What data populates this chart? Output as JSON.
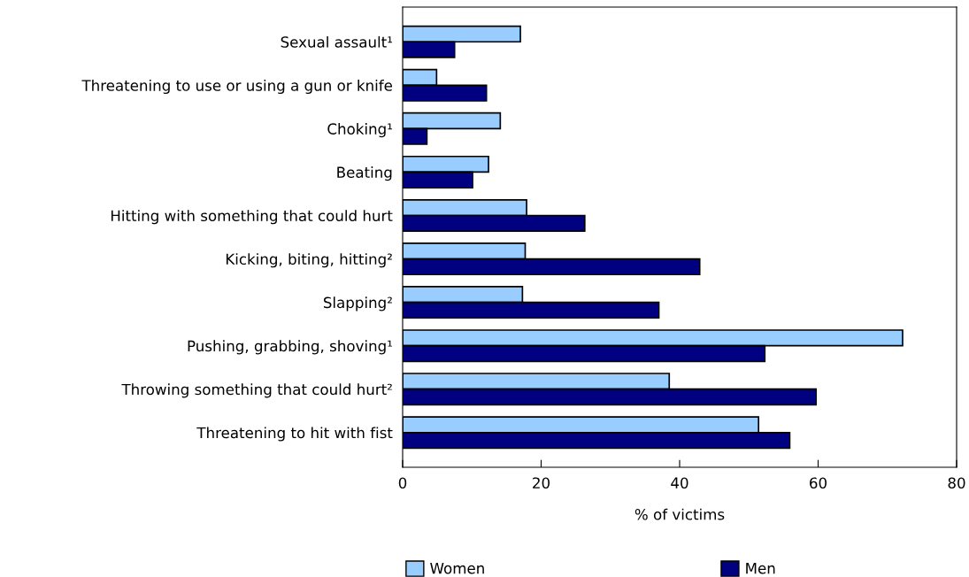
{
  "chart_data": {
    "type": "bar",
    "orientation": "horizontal",
    "xlabel": "% of victims",
    "categories": [
      "Sexual assault¹",
      "Threatening to use or using a gun or knife",
      "Choking¹",
      "Beating",
      "Hitting with something that could hurt",
      "Kicking, biting, hitting²",
      "Slapping²",
      "Pushing, grabbing, shoving¹",
      "Throwing something that could hurt²",
      "Threatening to hit with fist"
    ],
    "series": [
      {
        "name": "Women",
        "color": "#99ccff",
        "values": [
          17.0,
          4.9,
          14.1,
          12.4,
          17.9,
          17.7,
          17.3,
          72.2,
          38.5,
          51.4
        ]
      },
      {
        "name": "Men",
        "color": "#000080",
        "values": [
          7.5,
          12.1,
          3.5,
          10.1,
          26.3,
          42.9,
          37.0,
          52.3,
          59.7,
          55.9
        ]
      }
    ],
    "xlim": [
      0,
      80
    ],
    "xticks": [
      0,
      20,
      40,
      60,
      80
    ],
    "grid": false,
    "legend": "bottom"
  }
}
